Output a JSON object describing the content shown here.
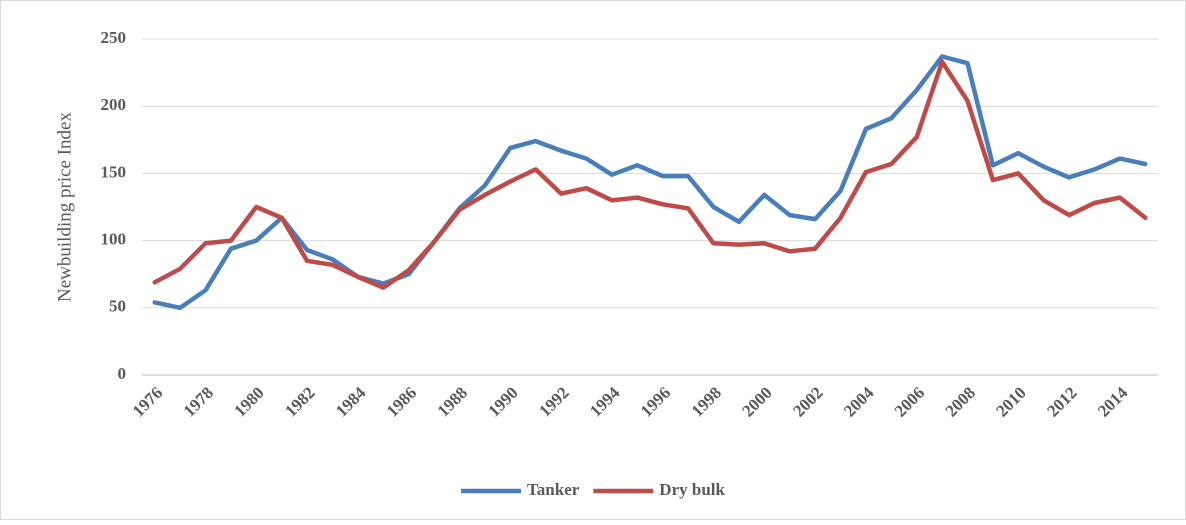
{
  "chart_data": {
    "type": "line",
    "y_label": "Newbuilding price Index",
    "categories": [
      "1976",
      null,
      "1978",
      null,
      "1980",
      null,
      "1982",
      null,
      "1984",
      null,
      "1986",
      null,
      "1988",
      null,
      "1990",
      null,
      "1992",
      null,
      "1994",
      null,
      "1996",
      null,
      "1998",
      null,
      "2000",
      null,
      "2002",
      null,
      "2004",
      null,
      "2006",
      null,
      "2008",
      null,
      "2010",
      null,
      "2012",
      null,
      "2014",
      null
    ],
    "series": [
      {
        "name": "Tanker",
        "color": "#4a7ebb",
        "values": [
          54,
          50,
          63,
          94,
          100,
          117,
          93,
          86,
          73,
          68,
          75,
          99,
          124,
          141,
          169,
          174,
          167,
          161,
          149,
          156,
          148,
          148,
          125,
          114,
          134,
          119,
          116,
          137,
          183,
          191,
          212,
          237,
          232,
          156,
          165,
          155,
          147,
          153,
          161,
          157
        ]
      },
      {
        "name": "Dry bulk",
        "color": "#be4b48",
        "values": [
          69,
          79,
          98,
          100,
          125,
          117,
          85,
          82,
          73,
          65,
          78,
          99,
          123,
          134,
          144,
          153,
          135,
          139,
          130,
          132,
          127,
          124,
          98,
          97,
          98,
          92,
          94,
          117,
          151,
          157,
          177,
          233,
          204,
          145,
          150,
          130,
          119,
          128,
          132,
          117
        ]
      }
    ],
    "ylim": [
      0,
      250
    ],
    "yticks": [
      0,
      50,
      100,
      150,
      200,
      250
    ],
    "grid": true,
    "legend": "bottom"
  }
}
